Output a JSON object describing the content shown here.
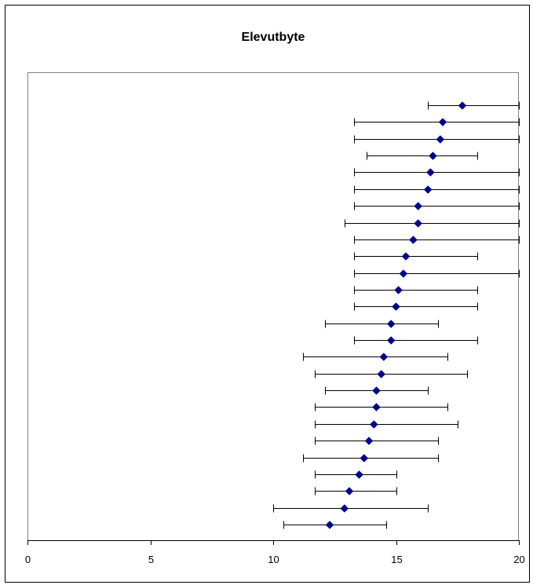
{
  "chart_data": {
    "type": "scatter",
    "title": "Elevutbyte",
    "xlabel": "",
    "ylabel": "",
    "xlim": [
      0,
      20
    ],
    "xticks": [
      "0",
      "5",
      "10",
      "15",
      "20"
    ],
    "grid": false,
    "legend": "none",
    "colors": {
      "marker": "#00008B",
      "errorbar": "#000000",
      "frame": "#000000"
    },
    "points": [
      {
        "x": 17.7,
        "low": 16.3,
        "high": 20.0
      },
      {
        "x": 16.9,
        "low": 13.3,
        "high": 20.0
      },
      {
        "x": 16.8,
        "low": 13.3,
        "high": 20.0
      },
      {
        "x": 16.5,
        "low": 13.8,
        "high": 18.3
      },
      {
        "x": 16.4,
        "low": 13.3,
        "high": 20.0
      },
      {
        "x": 16.3,
        "low": 13.3,
        "high": 20.0
      },
      {
        "x": 15.9,
        "low": 13.3,
        "high": 20.0
      },
      {
        "x": 15.9,
        "low": 12.9,
        "high": 20.0
      },
      {
        "x": 15.7,
        "low": 13.3,
        "high": 20.0
      },
      {
        "x": 15.4,
        "low": 13.3,
        "high": 18.3
      },
      {
        "x": 15.3,
        "low": 13.3,
        "high": 20.0
      },
      {
        "x": 15.1,
        "low": 13.3,
        "high": 18.3
      },
      {
        "x": 15.0,
        "low": 13.3,
        "high": 18.3
      },
      {
        "x": 14.8,
        "low": 12.1,
        "high": 16.7
      },
      {
        "x": 14.8,
        "low": 13.3,
        "high": 18.3
      },
      {
        "x": 14.5,
        "low": 11.2,
        "high": 17.1
      },
      {
        "x": 14.4,
        "low": 11.7,
        "high": 17.9
      },
      {
        "x": 14.2,
        "low": 12.1,
        "high": 16.3
      },
      {
        "x": 14.2,
        "low": 11.7,
        "high": 17.1
      },
      {
        "x": 14.1,
        "low": 11.7,
        "high": 17.5
      },
      {
        "x": 13.9,
        "low": 11.7,
        "high": 16.7
      },
      {
        "x": 13.7,
        "low": 11.2,
        "high": 16.7
      },
      {
        "x": 13.5,
        "low": 11.7,
        "high": 15.0
      },
      {
        "x": 13.1,
        "low": 11.7,
        "high": 15.0
      },
      {
        "x": 12.9,
        "low": 10.0,
        "high": 16.3
      },
      {
        "x": 12.3,
        "low": 10.4,
        "high": 14.6
      }
    ]
  }
}
